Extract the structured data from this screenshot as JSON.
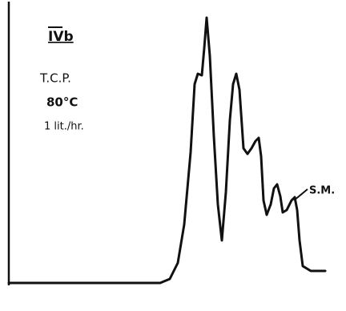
{
  "figure_id": "IVb",
  "conditions": [
    "T.C.P.",
    "80°C",
    "1 lit./hr."
  ],
  "peak_label": "S.M."
}
